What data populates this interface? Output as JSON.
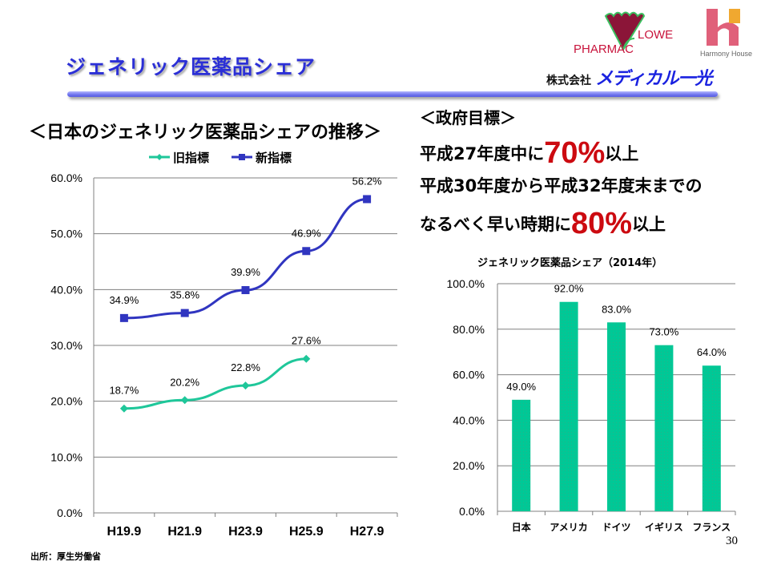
{
  "slide": {
    "title": "ジェネリック医薬品シェア",
    "page_number": "30",
    "source_note": "出所：厚生労働省"
  },
  "branding": {
    "pharmacy_logo_left": "PHARMAC",
    "pharmacy_logo_right": "LOWER",
    "harmony_logo_text": "Harmony House",
    "company_prefix": "株式会社",
    "company_name": "メディカル一光"
  },
  "government_target": {
    "heading": "＜政府目標＞",
    "line1_pre": "平成27年度中に",
    "line1_value": "70%",
    "line1_post": "以上",
    "line2": "平成30年度から平成32年度末までの",
    "line3_pre": "なるべく早い時期に",
    "line3_value": "80%",
    "line3_post": "以上"
  },
  "colors": {
    "old_index": "#1fc79a",
    "new_index": "#3035c0",
    "bar": "#00c896",
    "target_red": "#cc0a10",
    "title_blue": "#2b2fd6"
  },
  "chart_data": [
    {
      "type": "line",
      "title": "＜日本のジェネリック医薬品シェアの推移＞",
      "categories": [
        "H19.9",
        "H21.9",
        "H23.9",
        "H25.9",
        "H27.9"
      ],
      "series": [
        {
          "name": "旧指標",
          "values": [
            18.7,
            20.2,
            22.8,
            27.6,
            null
          ],
          "labels": [
            "18.7%",
            "20.2%",
            "22.8%",
            "27.6%",
            null
          ],
          "marker": "diamond"
        },
        {
          "name": "新指標",
          "values": [
            34.9,
            35.8,
            39.9,
            46.9,
            56.2
          ],
          "labels": [
            "34.9%",
            "35.8%",
            "39.9%",
            "46.9%",
            "56.2%"
          ],
          "marker": "square"
        }
      ],
      "ylim": [
        0,
        60
      ],
      "yticks": [
        "0.0%",
        "10.0%",
        "20.0%",
        "30.0%",
        "40.0%",
        "50.0%",
        "60.0%"
      ],
      "xlabel": "",
      "ylabel": "",
      "grid": true,
      "legend": "top"
    },
    {
      "type": "bar",
      "title": "ジェネリック医薬品シェア（2014年）",
      "categories": [
        "日本",
        "アメリカ",
        "ドイツ",
        "イギリス",
        "フランス"
      ],
      "values": [
        49.0,
        92.0,
        83.0,
        73.0,
        64.0
      ],
      "labels": [
        "49.0%",
        "92.0%",
        "83.0%",
        "73.0%",
        "64.0%"
      ],
      "ylim": [
        0,
        100
      ],
      "yticks": [
        "0.0%",
        "20.0%",
        "40.0%",
        "60.0%",
        "80.0%",
        "100.0%"
      ],
      "xlabel": "",
      "ylabel": "",
      "grid": true
    }
  ]
}
